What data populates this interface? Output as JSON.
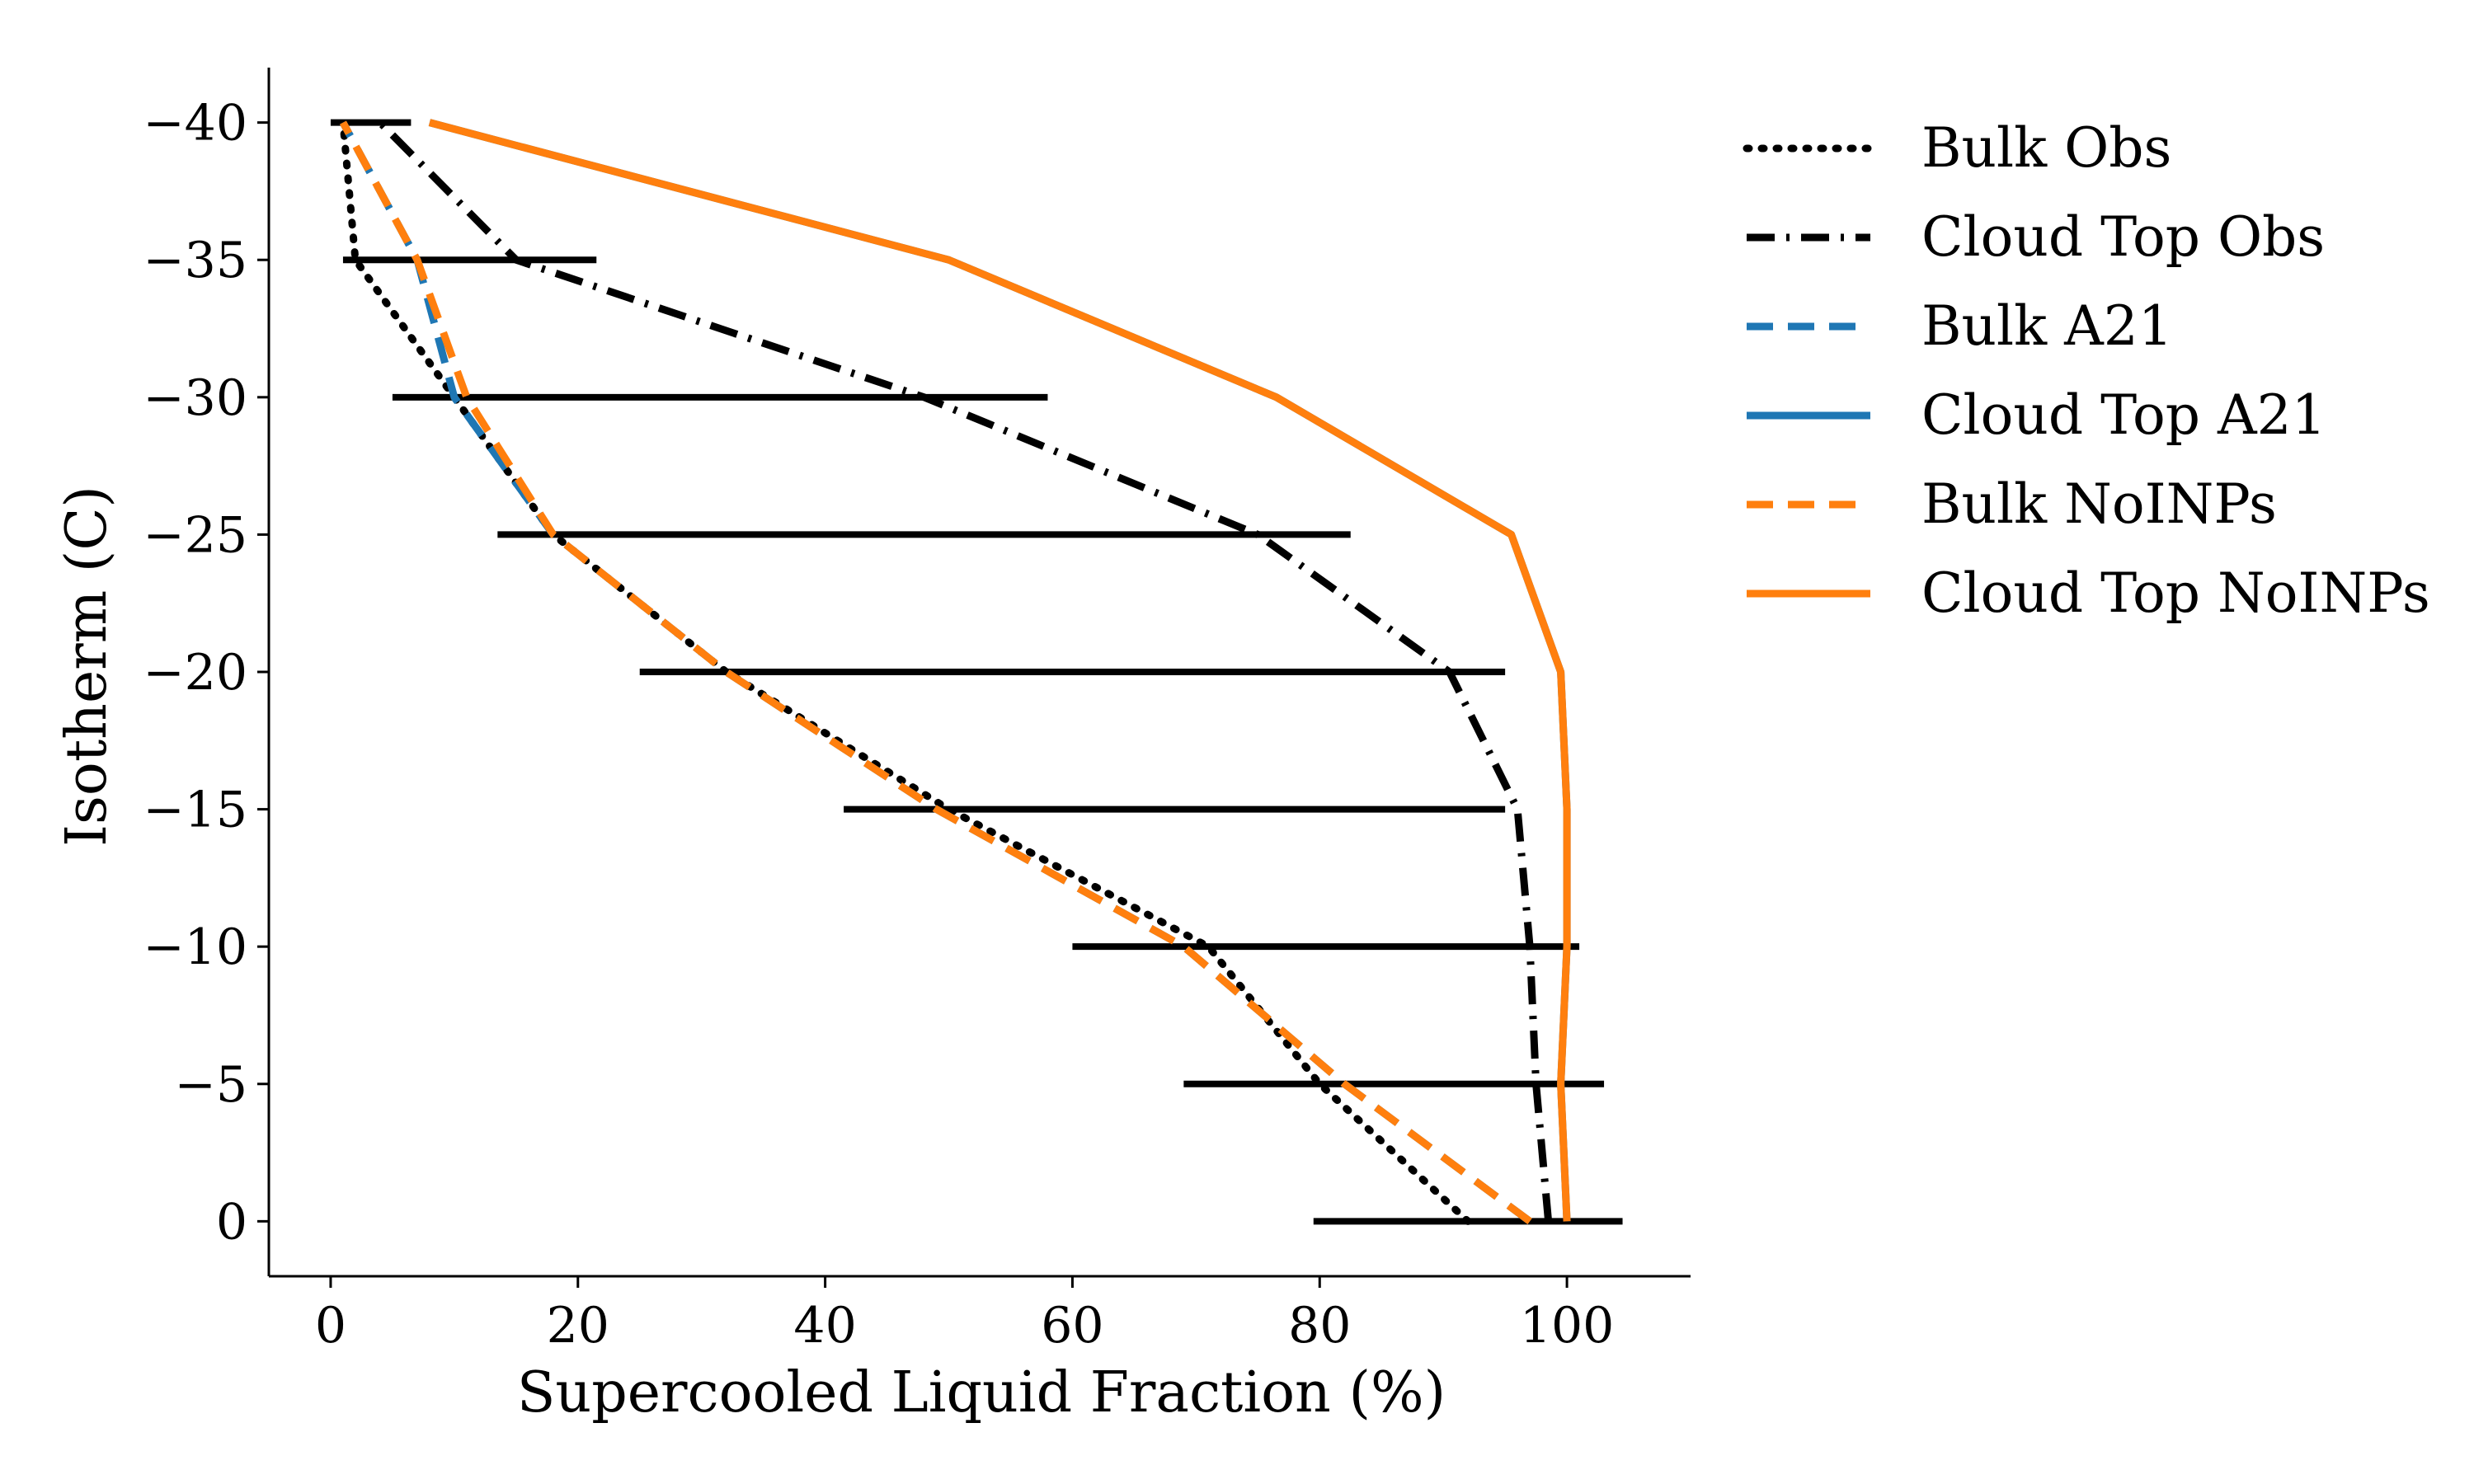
{
  "chart_data": {
    "type": "line",
    "xlabel": "Supercooled Liquid Fraction (%)",
    "ylabel": "Isotherm (C)",
    "xlim": [
      -5,
      110
    ],
    "ylim": [
      2,
      -42
    ],
    "y_inverted": true,
    "xticks": [
      0,
      20,
      40,
      60,
      80,
      100
    ],
    "xtick_labels": [
      "0",
      "20",
      "40",
      "60",
      "80",
      "100"
    ],
    "yticks": [
      0,
      -5,
      -10,
      -15,
      -20,
      -25,
      -30,
      -35,
      -40
    ],
    "ytick_labels": [
      "0",
      "−5",
      "−10",
      "−15",
      "−20",
      "−25",
      "−30",
      "−35",
      "−40"
    ],
    "grid": false,
    "legend_position": "outside right",
    "isotherms": [
      0,
      -5,
      -10,
      -15,
      -20,
      -25,
      -30,
      -35,
      -40
    ],
    "series": [
      {
        "name": "Bulk Obs",
        "color": "#000000",
        "style": "dotted",
        "x": [
          92,
          80,
          71,
          50,
          32,
          18,
          10,
          2,
          1
        ]
      },
      {
        "name": "Cloud Top Obs",
        "color": "#000000",
        "style": "dashdot",
        "x": [
          98.5,
          97.5,
          97,
          96,
          90.5,
          75,
          48,
          15,
          4
        ]
      },
      {
        "name": "Bulk A21",
        "color": "#1f77b4",
        "style": "dashed",
        "x": [
          97,
          82,
          69,
          49,
          32,
          18,
          10,
          7,
          1
        ]
      },
      {
        "name": "Cloud Top A21",
        "color": "#1f77b4",
        "style": "solid",
        "x": [
          100,
          99.5,
          100,
          100,
          99.5,
          95.5,
          76.5,
          50,
          8
        ]
      },
      {
        "name": "Bulk NoINPs",
        "color": "#ff7f0e",
        "style": "dashed",
        "x": [
          97,
          82,
          69,
          49,
          32,
          18,
          11,
          7,
          1
        ]
      },
      {
        "name": "Cloud Top NoINPs",
        "color": "#ff7f0e",
        "style": "solid",
        "x": [
          100,
          99.5,
          100,
          100,
          99.5,
          95.5,
          76.5,
          50,
          8
        ]
      }
    ],
    "error_bars": {
      "color": "#000000",
      "ranges": [
        {
          "y": 0,
          "x": [
            79.5,
            104.5
          ]
        },
        {
          "y": -5,
          "x": [
            69,
            103
          ]
        },
        {
          "y": -10,
          "x": [
            60,
            101
          ]
        },
        {
          "y": -15,
          "x": [
            41.5,
            95
          ]
        },
        {
          "y": -20,
          "x": [
            25,
            95
          ]
        },
        {
          "y": -25,
          "x": [
            13.5,
            82.5
          ]
        },
        {
          "y": -30,
          "x": [
            5,
            58
          ]
        },
        {
          "y": -35,
          "x": [
            1,
            21.5
          ]
        },
        {
          "y": -40,
          "x": [
            0,
            6.5
          ]
        }
      ]
    }
  }
}
